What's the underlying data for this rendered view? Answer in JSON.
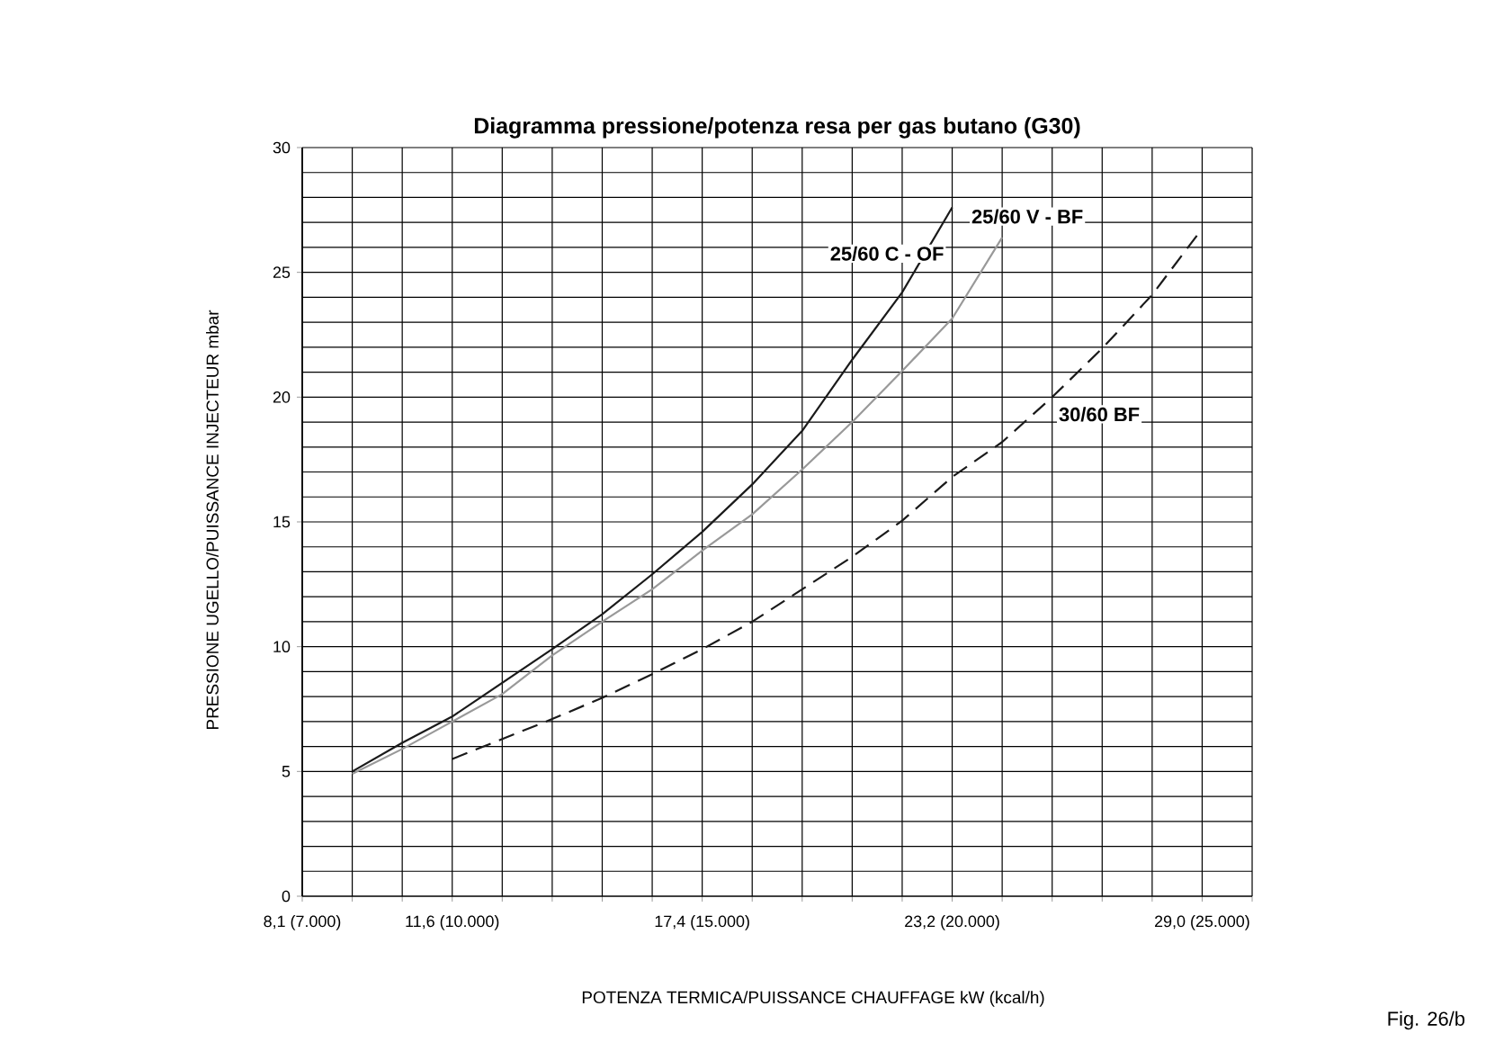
{
  "chart_data": {
    "type": "line",
    "title": "Diagramma pressione/potenza resa per gas butano (G30)",
    "xlabel": "POTENZA TERMICA/PUISSANCE CHAUFFAGE kW (kcal/h)",
    "ylabel": "PRESSIONE UGELLO/PUISSANCE INJECTEUR mbar",
    "categories": [
      "8,1 (7.000)",
      null,
      null,
      "11,6 (10.000)",
      null,
      null,
      null,
      null,
      "17,4 (15.000)",
      null,
      null,
      null,
      null,
      "23,2 (20.000)",
      null,
      null,
      null,
      null,
      "29,0 (25.000)",
      null
    ],
    "ylim": [
      0,
      30
    ],
    "yticks": [
      0,
      5,
      10,
      15,
      20,
      25,
      30
    ],
    "grid": true,
    "marker": "none",
    "series": [
      {
        "name": "25/60 C - OF",
        "color": "#1a1a1a",
        "line_style": "solid",
        "values": [
          null,
          5.0,
          6.15,
          7.2,
          8.55,
          9.9,
          11.3,
          12.9,
          14.6,
          16.5,
          18.65,
          21.5,
          24.2,
          27.6,
          null,
          null,
          null,
          null,
          null,
          null
        ]
      },
      {
        "name": "25/60 V - BF",
        "color": "#999999",
        "line_style": "solid",
        "values": [
          null,
          4.9,
          5.9,
          7.0,
          8.1,
          9.65,
          11.0,
          12.3,
          13.85,
          15.3,
          17.1,
          19.0,
          21.05,
          23.15,
          26.4,
          null,
          null,
          null,
          null,
          null
        ]
      },
      {
        "name": "30/60 BF",
        "color": "#1a1a1a",
        "line_style": "dashed",
        "values": [
          null,
          null,
          null,
          5.5,
          6.3,
          7.1,
          7.95,
          8.9,
          9.9,
          11.0,
          12.3,
          13.6,
          15.05,
          16.8,
          18.2,
          20.0,
          21.95,
          24.1,
          26.75,
          null
        ]
      }
    ],
    "annotations": [
      "Fig. 26/b"
    ]
  }
}
